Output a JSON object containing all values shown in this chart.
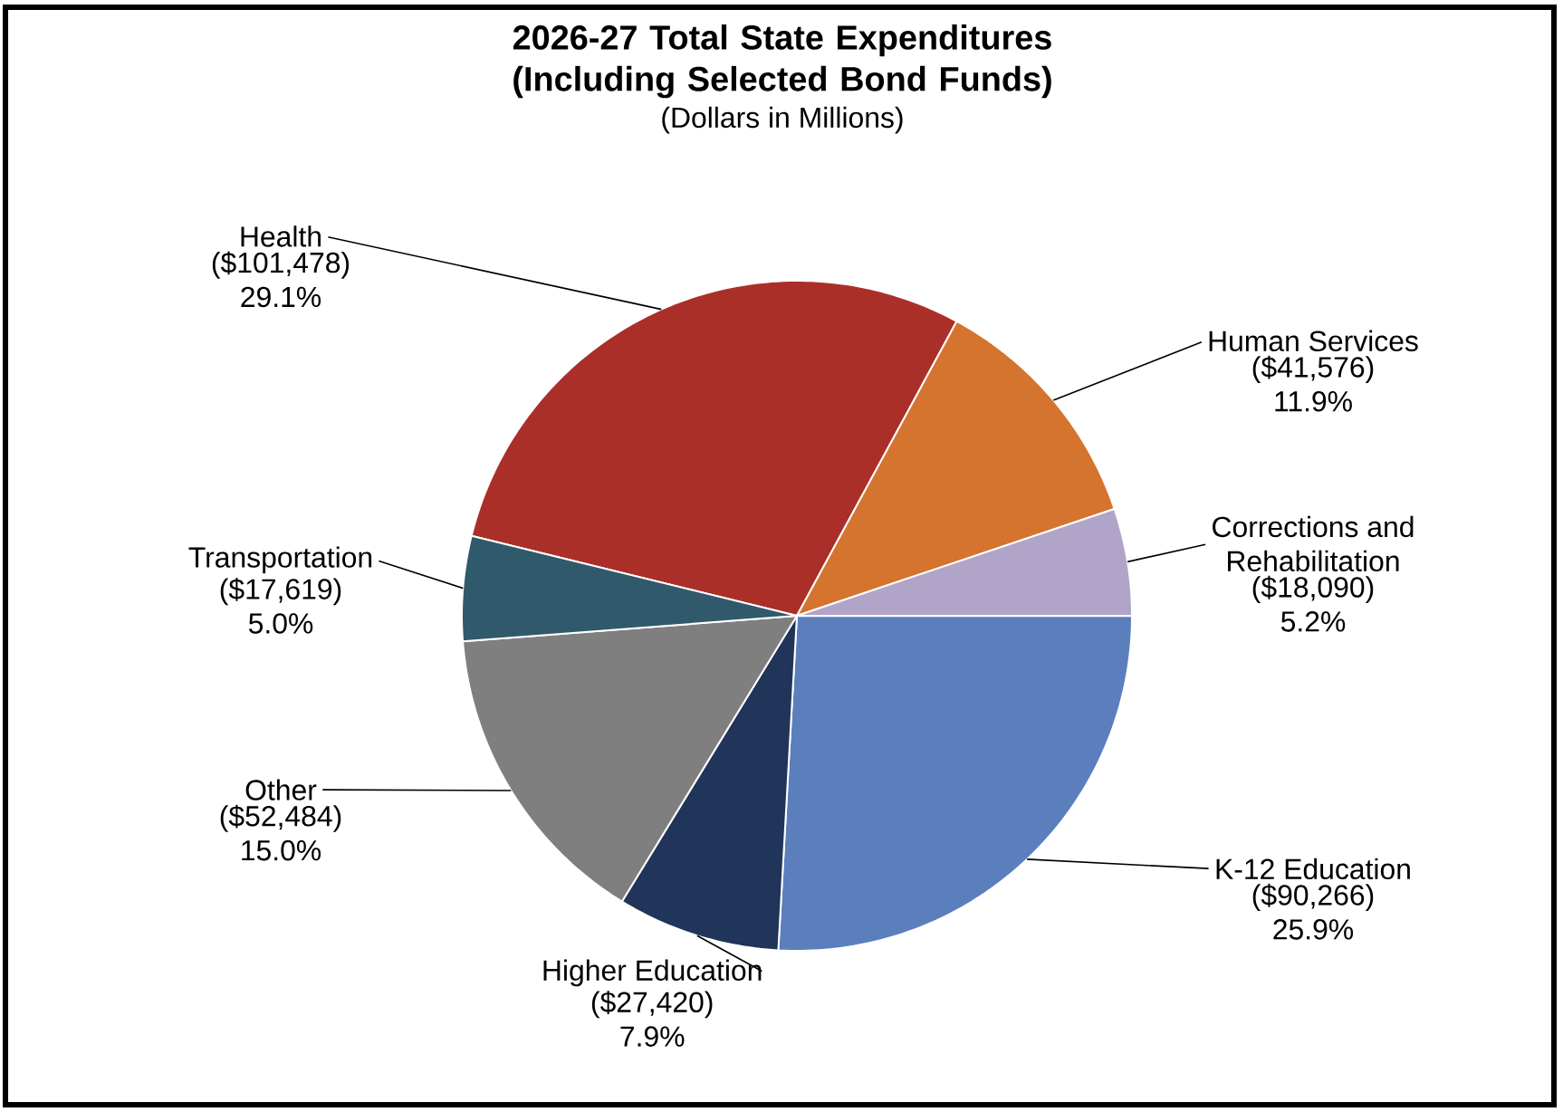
{
  "chart_data": {
    "type": "pie",
    "title": "2026-27 Total State Expenditures (Including Selected Bond Funds)",
    "subtitle": "(Dollars in Millions)",
    "categories": [
      "Health",
      "Human Services",
      "Corrections and Rehabilitation",
      "K-12 Education",
      "Higher Education",
      "Other",
      "Transportation"
    ],
    "values": [
      101478,
      41576,
      18090,
      90266,
      27420,
      52484,
      17619
    ],
    "value_labels": [
      "($101,478) 29.1%",
      "($41,576) 11.9%",
      "($18,090) 5.2%",
      "($90,266) 25.9%",
      "($27,420) 7.9%",
      "($52,484) 15.0%",
      "($17,619) 5.0%"
    ],
    "colors": [
      "#ab2f29",
      "#d4742f",
      "#b0a4c8",
      "#5b7fbd",
      "#21345a",
      "#7f7f7f",
      "#30596b"
    ]
  }
}
